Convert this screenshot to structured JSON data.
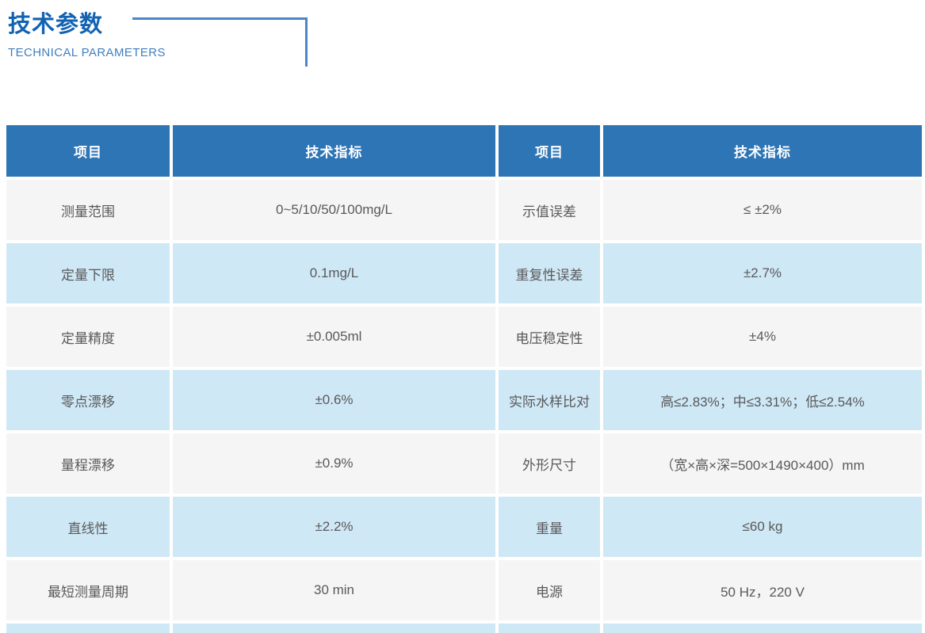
{
  "header": {
    "title": "技术参数",
    "subtitle": "TECHNICAL PARAMETERS"
  },
  "table": {
    "columns": [
      "项目",
      "技术指标",
      "项目",
      "技术指标"
    ],
    "rows": [
      [
        "测量范围",
        "0~5/10/50/100mg/L",
        "示值误差",
        "≤ ±2%"
      ],
      [
        "定量下限",
        "0.1mg/L",
        "重复性误差",
        "±2.7%"
      ],
      [
        "定量精度",
        "±0.005ml",
        "电压稳定性",
        "±4%"
      ],
      [
        "零点漂移",
        "±0.6%",
        "实际水样比对",
        "高≤2.83%；中≤3.31%；低≤2.54%"
      ],
      [
        "量程漂移",
        "±0.9%",
        "外形尺寸",
        "（宽×高×深=500×1490×400）mm"
      ],
      [
        "直线性",
        "±2.2%",
        "重量",
        "≤60 kg"
      ],
      [
        "最短测量周期",
        "30 min",
        "电源",
        "50 Hz，220 V"
      ]
    ]
  },
  "colors": {
    "header_blue": "#2e75b6",
    "row_blue": "#cfe8f6",
    "row_gray": "#f5f5f6",
    "title_blue": "#1263b2",
    "subtitle_blue": "#3f7fc0",
    "bracket_blue": "#4a86c8",
    "cell_text": "#595959"
  }
}
